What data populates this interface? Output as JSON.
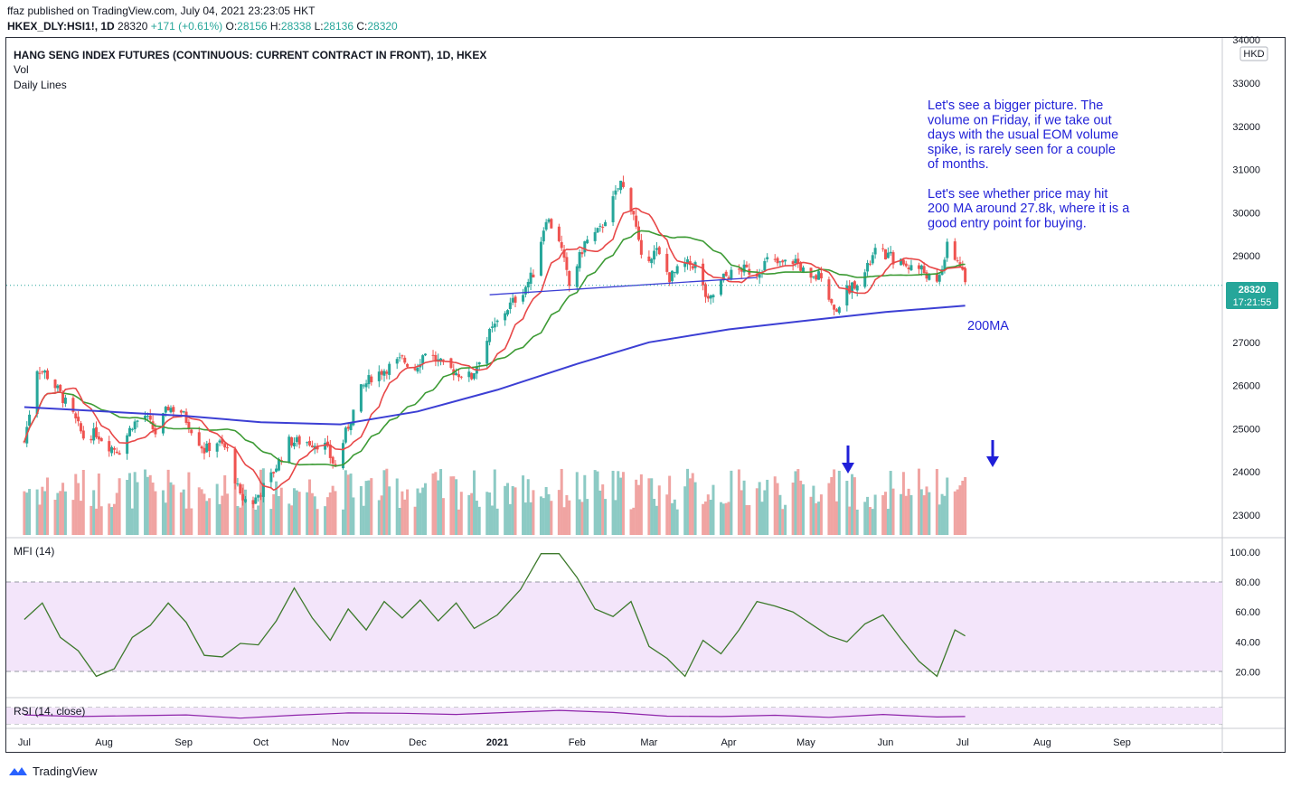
{
  "header": {
    "published": "ffaz published on TradingView.com, July 04, 2021 23:23:05 HKT",
    "symbol": "HKEX_DLY:HSI1!, 1D",
    "price": "28320",
    "change": "+171 (+0.61%)",
    "o_label": "O:",
    "o": "28156",
    "h_label": "H:",
    "h": "28338",
    "l_label": "L:",
    "l": "28136",
    "c_label": "C:",
    "c": "28320"
  },
  "legend": {
    "title": "HANG SENG INDEX FUTURES (CONTINUOUS: CURRENT CONTRACT IN FRONT), 1D, HKEX",
    "vol": "Vol",
    "daily_lines": "Daily Lines",
    "mfi": "MFI (14)",
    "rsi": "RSI (14, close)"
  },
  "price_axis": {
    "currency": "HKD",
    "ticks": [
      "34000",
      "33000",
      "32000",
      "31000",
      "30000",
      "29000",
      "28000",
      "27000",
      "26000",
      "25000",
      "24000",
      "23000"
    ],
    "last_price": "28320",
    "countdown": "17:21:55"
  },
  "mfi_axis": {
    "ticks": [
      "100.00",
      "80.00",
      "60.00",
      "40.00",
      "20.00"
    ]
  },
  "time_axis": {
    "ticks": [
      "Jul",
      "Aug",
      "Sep",
      "Oct",
      "Nov",
      "Dec",
      "2021",
      "Feb",
      "Mar",
      "Apr",
      "May",
      "Jun",
      "Jul",
      "Aug",
      "Sep"
    ]
  },
  "annotations": {
    "note_lines": [
      "Let's see a bigger picture. The",
      "volume on Friday, if we take out",
      "days with the usual EOM volume",
      "spike, is rarely seen for a couple",
      "of months.",
      "",
      "Let's see whether price may hit",
      "200 MA around 27.8k, where it is a",
      "good entry point for buying."
    ],
    "ma_label": "200MA"
  },
  "colors": {
    "up": "#26a69a",
    "down": "#ef5350",
    "vol_up": "#8ccac4",
    "vol_down": "#f0a4a2",
    "ma_short": "#e84848",
    "ma_mid": "#3d9b35",
    "ma_200": "#3c3fd4",
    "annotation": "#2323d8",
    "mfi": "#3d7a2c",
    "mfi_band": "#f3e5fa",
    "rsi": "#8e24aa"
  },
  "footer": {
    "brand": "TradingView"
  },
  "chart_data": {
    "type": "candlestick",
    "title": "HANG SENG INDEX FUTURES (CONTINUOUS: CURRENT CONTRACT IN FRONT), 1D, HKEX",
    "ylim": [
      22600,
      34200
    ],
    "x_start": "2020-07-01",
    "x_end": "2021-09-30",
    "price_closes": [
      [
        "2020-07-01",
        24700
      ],
      [
        "2020-07-06",
        26400
      ],
      [
        "2020-07-09",
        26300
      ],
      [
        "2020-07-14",
        25900
      ],
      [
        "2020-07-20",
        25300
      ],
      [
        "2020-07-24",
        24800
      ],
      [
        "2020-07-29",
        24900
      ],
      [
        "2020-08-03",
        24600
      ],
      [
        "2020-08-07",
        24500
      ],
      [
        "2020-08-12",
        25100
      ],
      [
        "2020-08-17",
        25300
      ],
      [
        "2020-08-21",
        24900
      ],
      [
        "2020-08-26",
        25500
      ],
      [
        "2020-08-31",
        25400
      ],
      [
        "2020-09-04",
        25000
      ],
      [
        "2020-09-09",
        24500
      ],
      [
        "2020-09-14",
        24700
      ],
      [
        "2020-09-18",
        24500
      ],
      [
        "2020-09-23",
        23400
      ],
      [
        "2020-09-28",
        23300
      ],
      [
        "2020-10-05",
        23900
      ],
      [
        "2020-10-12",
        24700
      ],
      [
        "2020-10-19",
        24700
      ],
      [
        "2020-10-26",
        24600
      ],
      [
        "2020-10-30",
        24100
      ],
      [
        "2020-11-03",
        24900
      ],
      [
        "2020-11-09",
        25900
      ],
      [
        "2020-11-13",
        26200
      ],
      [
        "2020-11-19",
        26400
      ],
      [
        "2020-11-25",
        26600
      ],
      [
        "2020-11-30",
        26400
      ],
      [
        "2020-12-04",
        26800
      ],
      [
        "2020-12-10",
        26500
      ],
      [
        "2020-12-16",
        26300
      ],
      [
        "2020-12-22",
        26200
      ],
      [
        "2020-12-29",
        27200
      ],
      [
        "2021-01-05",
        27800
      ],
      [
        "2021-01-11",
        28200
      ],
      [
        "2021-01-15",
        28600
      ],
      [
        "2021-01-20",
        29900
      ],
      [
        "2021-01-25",
        29400
      ],
      [
        "2021-01-29",
        28300
      ],
      [
        "2021-02-04",
        29300
      ],
      [
        "2021-02-10",
        29600
      ],
      [
        "2021-02-18",
        30700
      ],
      [
        "2021-02-23",
        30000
      ],
      [
        "2021-02-26",
        28900
      ],
      [
        "2021-03-04",
        29100
      ],
      [
        "2021-03-09",
        28500
      ],
      [
        "2021-03-15",
        28800
      ],
      [
        "2021-03-19",
        28800
      ],
      [
        "2021-03-24",
        27900
      ],
      [
        "2021-03-30",
        28500
      ],
      [
        "2021-04-06",
        28700
      ],
      [
        "2021-04-12",
        28600
      ],
      [
        "2021-04-16",
        28900
      ],
      [
        "2021-04-21",
        28800
      ],
      [
        "2021-04-27",
        28900
      ],
      [
        "2021-05-03",
        28400
      ],
      [
        "2021-05-07",
        28600
      ],
      [
        "2021-05-12",
        27700
      ],
      [
        "2021-05-17",
        28200
      ],
      [
        "2021-05-24",
        28600
      ],
      [
        "2021-05-28",
        29100
      ],
      [
        "2021-06-02",
        29000
      ],
      [
        "2021-06-08",
        28800
      ],
      [
        "2021-06-15",
        28700
      ],
      [
        "2021-06-21",
        28300
      ],
      [
        "2021-06-25",
        29200
      ],
      [
        "2021-06-30",
        28800
      ],
      [
        "2021-07-02",
        28320
      ]
    ],
    "ma_200": [
      [
        "2020-07-01",
        25500
      ],
      [
        "2020-08-01",
        25400
      ],
      [
        "2020-09-01",
        25300
      ],
      [
        "2020-10-01",
        25150
      ],
      [
        "2020-11-01",
        25100
      ],
      [
        "2020-12-01",
        25400
      ],
      [
        "2021-01-01",
        25900
      ],
      [
        "2021-02-01",
        26500
      ],
      [
        "2021-03-01",
        27000
      ],
      [
        "2021-04-01",
        27300
      ],
      [
        "2021-05-01",
        27500
      ],
      [
        "2021-06-01",
        27700
      ],
      [
        "2021-07-02",
        27850
      ]
    ],
    "trendline": [
      [
        "2020-12-29",
        28100
      ],
      [
        "2021-04-12",
        28500
      ]
    ],
    "mfi_range": [
      0,
      100
    ],
    "mfi": [
      [
        "2020-07-01",
        55
      ],
      [
        "2020-07-08",
        66
      ],
      [
        "2020-07-15",
        43
      ],
      [
        "2020-07-22",
        34
      ],
      [
        "2020-07-29",
        17
      ],
      [
        "2020-08-05",
        22
      ],
      [
        "2020-08-12",
        43
      ],
      [
        "2020-08-19",
        51
      ],
      [
        "2020-08-26",
        66
      ],
      [
        "2020-09-02",
        53
      ],
      [
        "2020-09-09",
        31
      ],
      [
        "2020-09-16",
        30
      ],
      [
        "2020-09-23",
        39
      ],
      [
        "2020-09-30",
        38
      ],
      [
        "2020-10-07",
        54
      ],
      [
        "2020-10-14",
        76
      ],
      [
        "2020-10-21",
        56
      ],
      [
        "2020-10-28",
        41
      ],
      [
        "2020-11-04",
        62
      ],
      [
        "2020-11-11",
        48
      ],
      [
        "2020-11-18",
        67
      ],
      [
        "2020-11-25",
        56
      ],
      [
        "2020-12-02",
        68
      ],
      [
        "2020-12-09",
        54
      ],
      [
        "2020-12-16",
        66
      ],
      [
        "2020-12-23",
        49
      ],
      [
        "2021-01-01",
        58
      ],
      [
        "2021-01-10",
        75
      ],
      [
        "2021-01-18",
        99
      ],
      [
        "2021-01-25",
        99
      ],
      [
        "2021-02-01",
        83
      ],
      [
        "2021-02-08",
        62
      ],
      [
        "2021-02-15",
        57
      ],
      [
        "2021-02-22",
        67
      ],
      [
        "2021-03-01",
        37
      ],
      [
        "2021-03-08",
        29
      ],
      [
        "2021-03-15",
        17
      ],
      [
        "2021-03-22",
        41
      ],
      [
        "2021-03-29",
        32
      ],
      [
        "2021-04-05",
        48
      ],
      [
        "2021-04-12",
        67
      ],
      [
        "2021-04-19",
        64
      ],
      [
        "2021-04-26",
        60
      ],
      [
        "2021-05-03",
        52
      ],
      [
        "2021-05-10",
        44
      ],
      [
        "2021-05-17",
        40
      ],
      [
        "2021-05-24",
        52
      ],
      [
        "2021-05-31",
        58
      ],
      [
        "2021-06-07",
        42
      ],
      [
        "2021-06-14",
        27
      ],
      [
        "2021-06-21",
        17
      ],
      [
        "2021-06-28",
        48
      ],
      [
        "2021-07-02",
        44
      ]
    ],
    "rsi_range": [
      30,
      70
    ],
    "rsi": [
      [
        "2020-07-01",
        52
      ],
      [
        "2020-07-22",
        48
      ],
      [
        "2020-08-12",
        50
      ],
      [
        "2020-09-02",
        52
      ],
      [
        "2020-09-23",
        44
      ],
      [
        "2020-10-14",
        51
      ],
      [
        "2020-11-04",
        57
      ],
      [
        "2020-11-25",
        56
      ],
      [
        "2020-12-16",
        53
      ],
      [
        "2021-01-05",
        58
      ],
      [
        "2021-01-25",
        63
      ],
      [
        "2021-02-15",
        58
      ],
      [
        "2021-03-08",
        49
      ],
      [
        "2021-03-29",
        48
      ],
      [
        "2021-04-19",
        51
      ],
      [
        "2021-05-10",
        46
      ],
      [
        "2021-05-31",
        53
      ],
      [
        "2021-06-21",
        47
      ],
      [
        "2021-07-02",
        48
      ]
    ],
    "marked_volume_days": [
      "2021-05-11",
      "2021-07-02"
    ]
  }
}
